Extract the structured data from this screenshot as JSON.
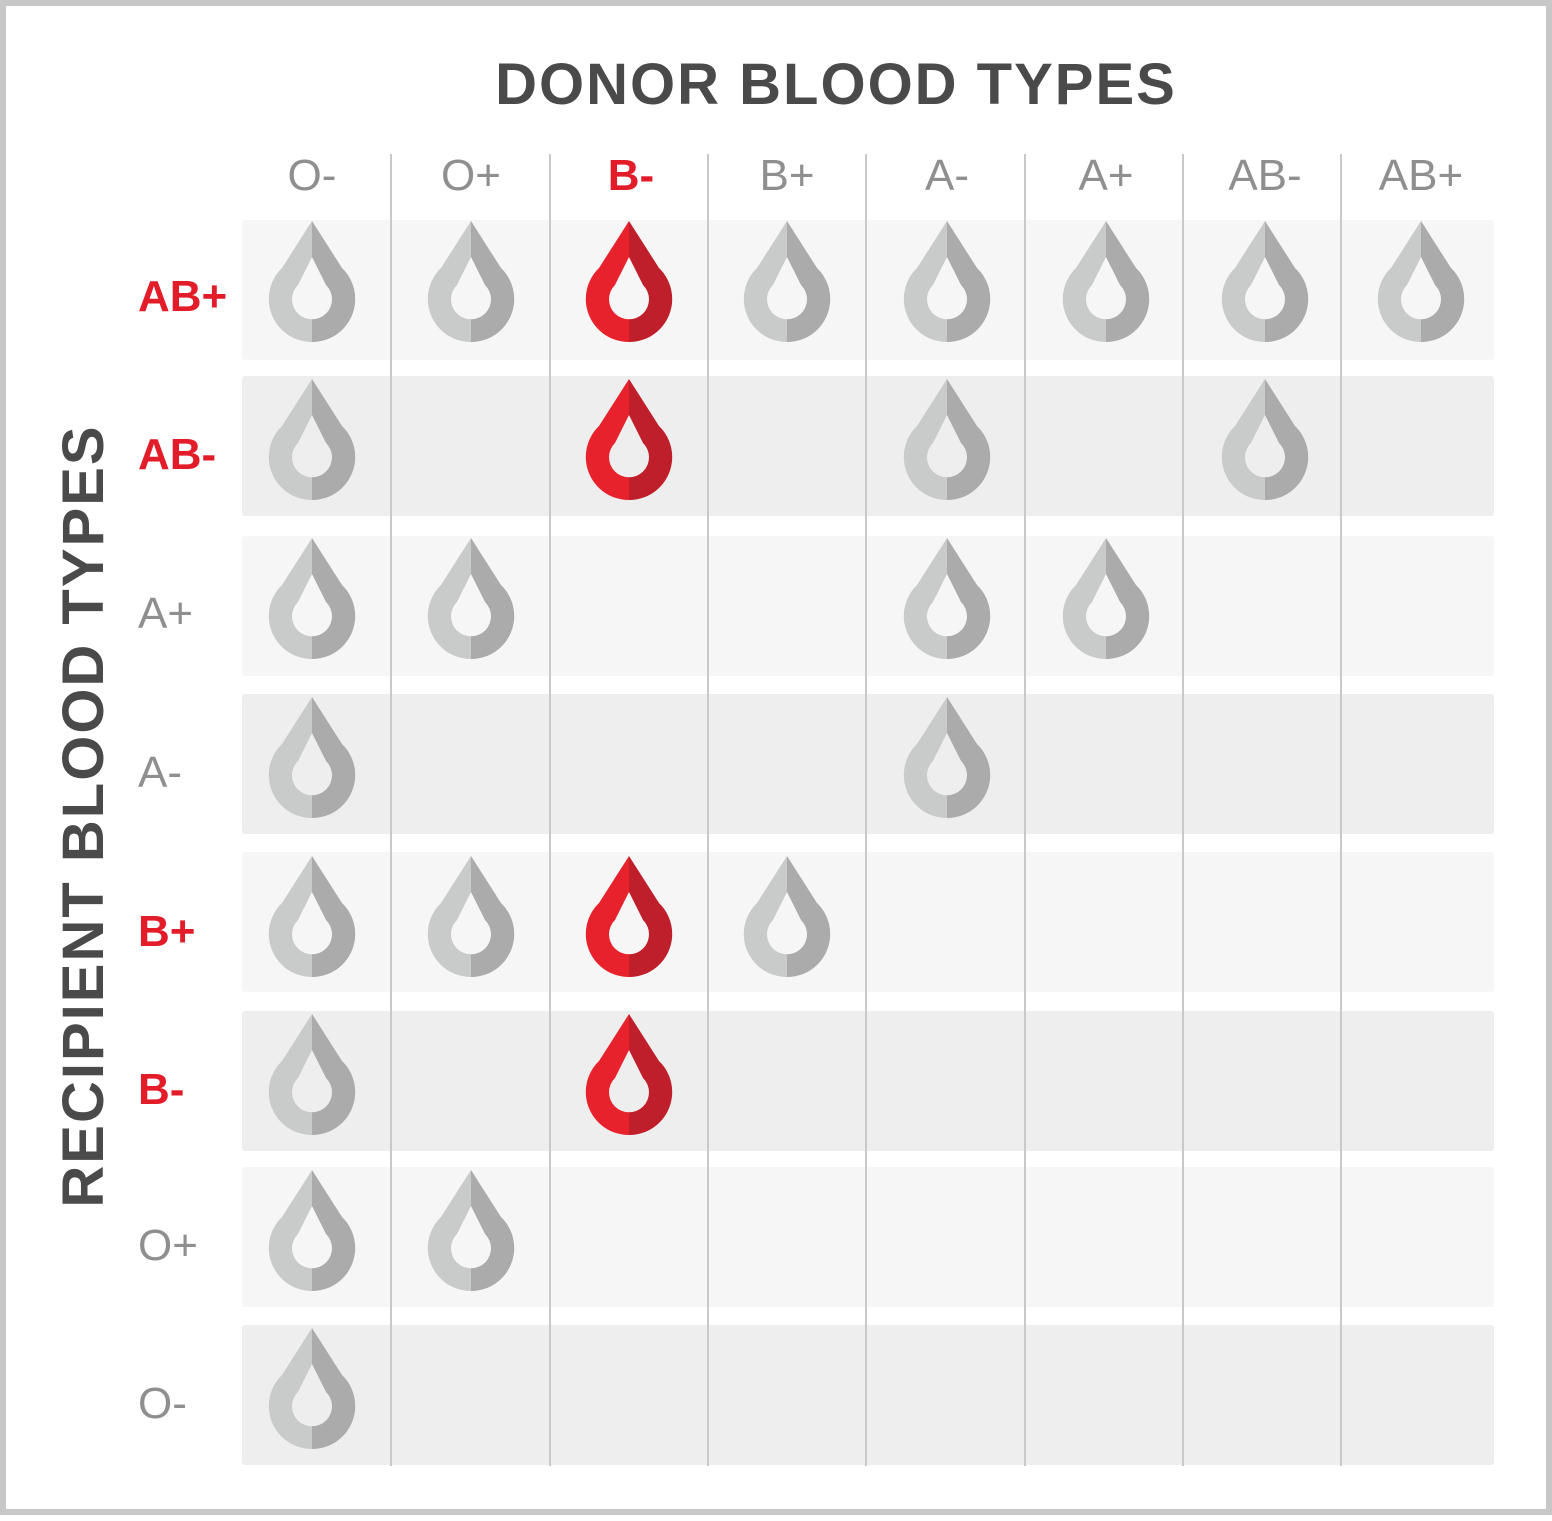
{
  "chart_data": {
    "type": "table",
    "title": "DONOR BLOOD TYPES",
    "xlabel": "DONOR BLOOD TYPES",
    "ylabel": "RECIPIENT BLOOD TYPES",
    "donor_types": [
      "O-",
      "O+",
      "B-",
      "B+",
      "A-",
      "A+",
      "AB-",
      "AB+"
    ],
    "recipient_types": [
      "AB+",
      "AB-",
      "A+",
      "A-",
      "B+",
      "B-",
      "O+",
      "O-"
    ],
    "highlighted_type": "B-",
    "compatibility": [
      [
        1,
        1,
        1,
        1,
        1,
        1,
        1,
        1
      ],
      [
        1,
        0,
        1,
        0,
        1,
        0,
        1,
        0
      ],
      [
        1,
        1,
        0,
        0,
        1,
        1,
        0,
        0
      ],
      [
        1,
        0,
        0,
        0,
        1,
        0,
        0,
        0
      ],
      [
        1,
        1,
        1,
        1,
        0,
        0,
        0,
        0
      ],
      [
        1,
        0,
        1,
        0,
        0,
        0,
        0,
        0
      ],
      [
        1,
        1,
        0,
        0,
        0,
        0,
        0,
        0
      ],
      [
        1,
        0,
        0,
        0,
        0,
        0,
        0,
        0
      ]
    ]
  },
  "colors": {
    "highlight_light": "#e8222d",
    "highlight_dark": "#bf1f2a",
    "drop_light": "#c9caca",
    "drop_dark": "#ababab",
    "row_light": "#f6f6f7",
    "row_dark": "#eeeeee",
    "divider": "#c9c9c9"
  }
}
